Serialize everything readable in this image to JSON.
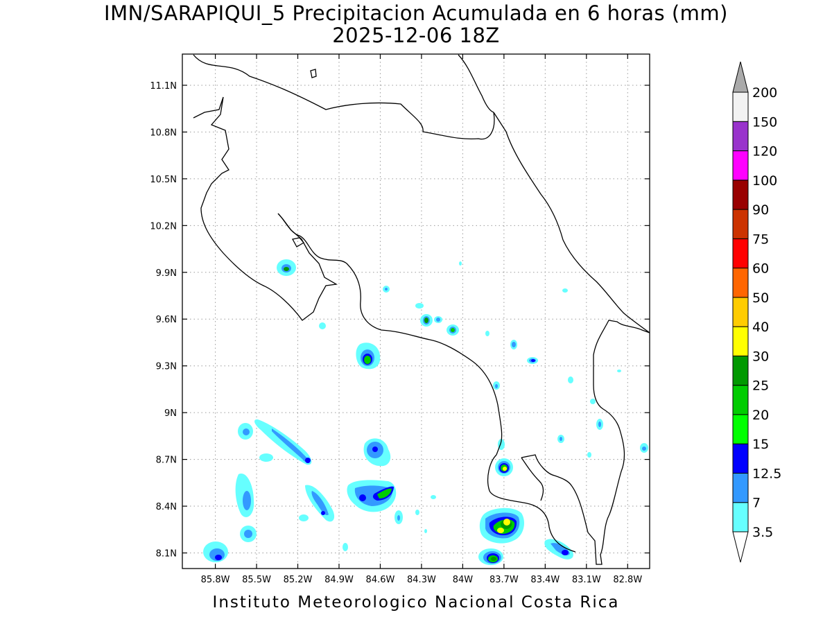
{
  "title": "IMN/SARAPIQUI_5 Precipitacion Acumulada en 6 horas (mm)",
  "subtitle": "2025-12-06 18Z",
  "footer": "Instituto Meteorologico Nacional Costa Rica",
  "map": {
    "lon_range": [
      -86.04,
      -82.64
    ],
    "lat_range": [
      8.0,
      11.3
    ],
    "lon_ticks": [
      {
        "value": -85.8,
        "label": "85.8W"
      },
      {
        "value": -85.5,
        "label": "85.5W"
      },
      {
        "value": -85.2,
        "label": "85.2W"
      },
      {
        "value": -84.9,
        "label": "84.9W"
      },
      {
        "value": -84.6,
        "label": "84.6W"
      },
      {
        "value": -84.3,
        "label": "84.3W"
      },
      {
        "value": -84.0,
        "label": "84W"
      },
      {
        "value": -83.7,
        "label": "83.7W"
      },
      {
        "value": -83.4,
        "label": "83.4W"
      },
      {
        "value": -83.1,
        "label": "83.1W"
      },
      {
        "value": -82.8,
        "label": "82.8W"
      }
    ],
    "lat_ticks": [
      {
        "value": 11.1,
        "label": "11.1N"
      },
      {
        "value": 10.8,
        "label": "10.8N"
      },
      {
        "value": 10.5,
        "label": "10.5N"
      },
      {
        "value": 10.2,
        "label": "10.2N"
      },
      {
        "value": 9.9,
        "label": "9.9N"
      },
      {
        "value": 9.6,
        "label": "9.6N"
      },
      {
        "value": 9.3,
        "label": "9.3N"
      },
      {
        "value": 9.0,
        "label": "9N"
      },
      {
        "value": 8.7,
        "label": "8.7N"
      },
      {
        "value": 8.4,
        "label": "8.4N"
      },
      {
        "value": 8.1,
        "label": "8.1N"
      }
    ],
    "grid": true
  },
  "colorbar": {
    "levels": [
      "3.5",
      "7",
      "12.5",
      "15",
      "20",
      "25",
      "30",
      "40",
      "50",
      "60",
      "75",
      "90",
      "100",
      "120",
      "150",
      "200"
    ],
    "colors": [
      "#66ffff",
      "#3399ff",
      "#0000ff",
      "#00ff00",
      "#00cc00",
      "#009900",
      "#ffff00",
      "#ffcc00",
      "#ff6600",
      "#ff0000",
      "#cc3300",
      "#990000",
      "#ff00ff",
      "#9933cc",
      "#f2f2f2",
      "#aaaaaa"
    ],
    "under_color": "#ffffff",
    "over_color": "#aaaaaa"
  },
  "precip_cells": [
    {
      "lon": -85.75,
      "lat": 8.12,
      "max_mm": 15
    },
    {
      "lon": -85.45,
      "lat": 8.85,
      "max_mm": 7
    },
    {
      "lon": -85.45,
      "lat": 8.45,
      "max_mm": 7
    },
    {
      "lon": -85.45,
      "lat": 8.25,
      "max_mm": 7
    },
    {
      "lon": -85.22,
      "lat": 9.92,
      "max_mm": 25
    },
    {
      "lon": -85.05,
      "lat": 8.82,
      "max_mm": 12.5
    },
    {
      "lon": -84.85,
      "lat": 8.38,
      "max_mm": 12.5
    },
    {
      "lon": -84.6,
      "lat": 9.35,
      "max_mm": 20
    },
    {
      "lon": -84.55,
      "lat": 8.75,
      "max_mm": 15
    },
    {
      "lon": -84.5,
      "lat": 8.48,
      "max_mm": 20
    },
    {
      "lon": -84.17,
      "lat": 9.59,
      "max_mm": 25
    },
    {
      "lon": -83.98,
      "lat": 9.53,
      "max_mm": 20
    },
    {
      "lon": -83.62,
      "lat": 8.65,
      "max_mm": 40
    },
    {
      "lon": -83.6,
      "lat": 8.28,
      "max_mm": 40
    },
    {
      "lon": -83.68,
      "lat": 8.08,
      "max_mm": 20
    },
    {
      "lon": -83.35,
      "lat": 9.34,
      "max_mm": 12.5
    },
    {
      "lon": -83.1,
      "lat": 8.1,
      "max_mm": 12.5
    }
  ]
}
